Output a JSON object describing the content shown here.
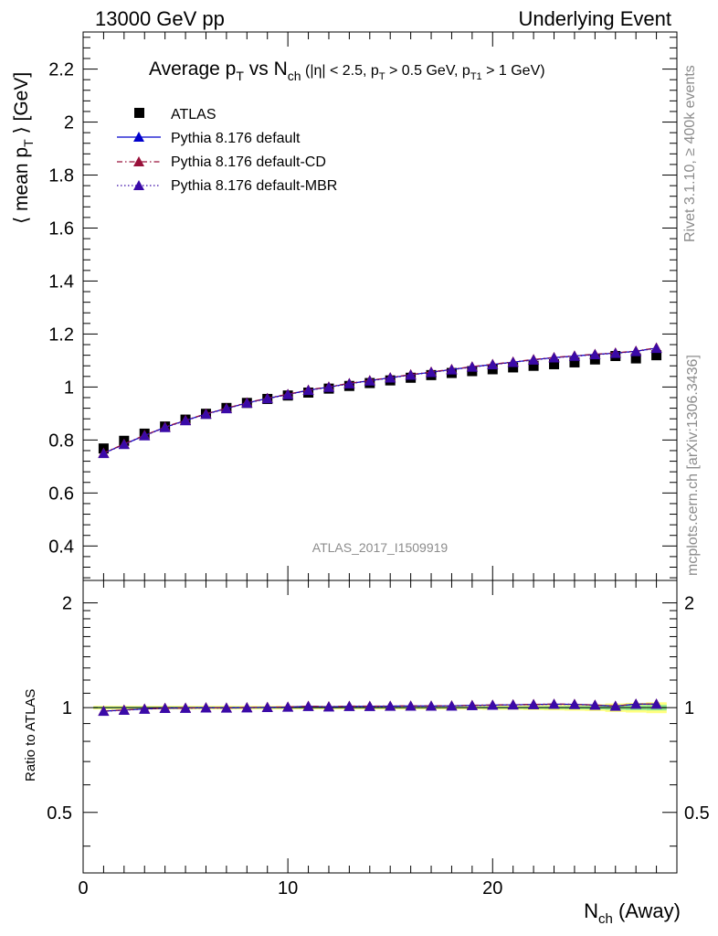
{
  "header": {
    "left": "13000 GeV pp",
    "right": "Underlying Event"
  },
  "title": {
    "main_a": "Average p",
    "main_sub1": "T",
    "main_b": " vs N",
    "main_sub2": "ch",
    "cuts_a": " (|η| < 2.5, p",
    "cuts_sub1": "T",
    "cuts_b": " > 0.5 GeV, p",
    "cuts_sub2": "T1",
    "cuts_c": " > 1 GeV)"
  },
  "side_labels": {
    "rivet": "Rivet 3.1.10, ≥ 400k events",
    "mcplots": "mcplots.cern.ch [arXiv:1306.3436]"
  },
  "analysis_id": "ATLAS_2017_I1509919",
  "ylabel_main": {
    "a": "⟨ mean p",
    "sub": "T",
    "b": " ⟩ [GeV]"
  },
  "ylabel_ratio": "Ratio to ATLAS",
  "xlabel": {
    "a": "N",
    "sub": "ch",
    "b": " (Away)"
  },
  "colors": {
    "atlas": "#000000",
    "default": "#0000cc",
    "cd": "#99113a",
    "mbr": "#3a0aa8",
    "band_yellow": "#ffff80",
    "band_green": "#90e890"
  },
  "chart_data": {
    "type": "scatter",
    "x": [
      1,
      2,
      3,
      4,
      5,
      6,
      7,
      8,
      9,
      10,
      11,
      12,
      13,
      14,
      15,
      16,
      17,
      18,
      19,
      20,
      21,
      22,
      23,
      24,
      25,
      26,
      27,
      28
    ],
    "xlim": [
      0,
      29
    ],
    "main": {
      "ylim": [
        0.27,
        2.34
      ],
      "yticks": [
        "0.4",
        "0.6",
        "0.8",
        "1",
        "1.2",
        "1.4",
        "1.6",
        "1.8",
        "2",
        "2.2"
      ],
      "series": [
        {
          "name": "ATLAS",
          "style": "square",
          "values": [
            0.768,
            0.797,
            0.824,
            0.851,
            0.877,
            0.899,
            0.921,
            0.94,
            0.955,
            0.968,
            0.979,
            0.994,
            1.004,
            1.015,
            1.025,
            1.035,
            1.045,
            1.053,
            1.06,
            1.067,
            1.074,
            1.08,
            1.086,
            1.093,
            1.104,
            1.117,
            1.108,
            1.12
          ]
        },
        {
          "name": "Pythia 8.176 default",
          "style": "solid",
          "values": [
            0.75,
            0.784,
            0.817,
            0.848,
            0.874,
            0.898,
            0.919,
            0.94,
            0.957,
            0.972,
            0.988,
            1.0,
            1.013,
            1.024,
            1.035,
            1.046,
            1.056,
            1.066,
            1.076,
            1.085,
            1.094,
            1.103,
            1.111,
            1.117,
            1.123,
            1.128,
            1.135,
            1.147
          ]
        },
        {
          "name": "Pythia 8.176 default-CD",
          "style": "dashdot",
          "values": [
            0.751,
            0.785,
            0.818,
            0.849,
            0.875,
            0.899,
            0.92,
            0.941,
            0.958,
            0.973,
            0.989,
            1.001,
            1.014,
            1.025,
            1.036,
            1.047,
            1.057,
            1.067,
            1.077,
            1.086,
            1.095,
            1.104,
            1.112,
            1.118,
            1.124,
            1.129,
            1.136,
            1.148
          ]
        },
        {
          "name": "Pythia 8.176 default-MBR",
          "style": "dotted",
          "values": [
            0.749,
            0.783,
            0.816,
            0.847,
            0.873,
            0.897,
            0.918,
            0.939,
            0.956,
            0.971,
            0.987,
            0.999,
            1.012,
            1.023,
            1.034,
            1.045,
            1.055,
            1.065,
            1.075,
            1.084,
            1.093,
            1.102,
            1.11,
            1.116,
            1.122,
            1.127,
            1.134,
            1.146
          ]
        }
      ]
    },
    "ratio": {
      "ylim": [
        0.335,
        2.32
      ],
      "yticks": [
        "0.5",
        "1",
        "2"
      ],
      "series": [
        {
          "name": "Pythia 8.176 default",
          "values": [
            0.977,
            0.984,
            0.991,
            0.996,
            0.997,
            0.999,
            0.998,
            1.0,
            1.002,
            1.004,
            1.009,
            1.006,
            1.009,
            1.009,
            1.01,
            1.011,
            1.011,
            1.012,
            1.015,
            1.017,
            1.019,
            1.021,
            1.023,
            1.022,
            1.017,
            1.01,
            1.024,
            1.024
          ]
        },
        {
          "name": "Pythia 8.176 default-CD",
          "values": [
            0.978,
            0.985,
            0.992,
            0.997,
            0.998,
            1.0,
            0.999,
            1.001,
            1.003,
            1.005,
            1.01,
            1.007,
            1.01,
            1.01,
            1.011,
            1.012,
            1.012,
            1.013,
            1.016,
            1.018,
            1.02,
            1.022,
            1.024,
            1.023,
            1.018,
            1.011,
            1.025,
            1.025
          ]
        },
        {
          "name": "Pythia 8.176 default-MBR",
          "values": [
            0.976,
            0.983,
            0.99,
            0.995,
            0.996,
            0.998,
            0.997,
            0.999,
            1.001,
            1.003,
            1.008,
            1.005,
            1.008,
            1.008,
            1.009,
            1.01,
            1.01,
            1.011,
            1.014,
            1.016,
            1.018,
            1.02,
            1.022,
            1.021,
            1.016,
            1.009,
            1.023,
            1.023
          ]
        }
      ],
      "band_halfwidth": [
        0.006,
        0.006,
        0.006,
        0.006,
        0.006,
        0.006,
        0.006,
        0.006,
        0.006,
        0.006,
        0.006,
        0.006,
        0.006,
        0.006,
        0.006,
        0.006,
        0.006,
        0.006,
        0.006,
        0.007,
        0.007,
        0.008,
        0.009,
        0.01,
        0.011,
        0.014,
        0.016,
        0.018
      ]
    },
    "xticks": [
      "0",
      "10",
      "20"
    ],
    "legend_placement": "top-left"
  }
}
